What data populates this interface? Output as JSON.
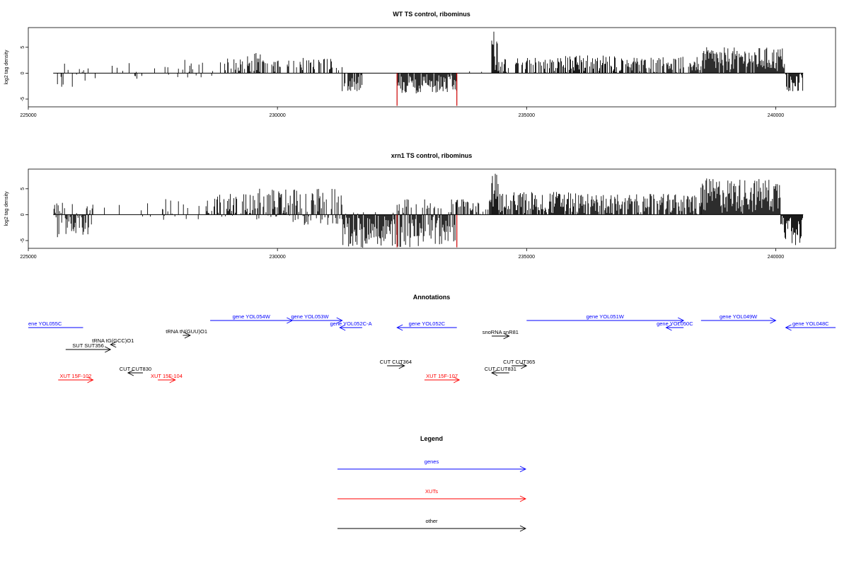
{
  "colors": {
    "genes": "#0000ff",
    "XUTs": "#ff0000",
    "other": "#000000",
    "highlight": "#cc0000"
  },
  "chart_data": [
    {
      "type": "bar",
      "title": "WT TS control, ribominus",
      "ylabel": "log2 tag density",
      "xlim": [
        225000,
        241200
      ],
      "ylim": [
        -6.5,
        8.8
      ],
      "xticks": [
        "225000",
        "230000",
        "235000",
        "240000"
      ],
      "yticks": [
        "-5",
        "0",
        "5"
      ],
      "data_range": [
        225500,
        240550
      ],
      "highlight_positions": [
        232400,
        233600
      ],
      "highlight_value": -6.3,
      "regions": [
        {
          "x0": 225500,
          "x1": 226200,
          "min": -3,
          "max": 2,
          "density": 0.3
        },
        {
          "x0": 226200,
          "x1": 227700,
          "min": -1.5,
          "max": 2,
          "density": 0.15
        },
        {
          "x0": 227700,
          "x1": 228700,
          "min": -1,
          "max": 3,
          "density": 0.3
        },
        {
          "x0": 228700,
          "x1": 229000,
          "min": 0,
          "max": 2.5,
          "density": 0.3
        },
        {
          "x0": 229000,
          "x1": 229400,
          "min": 0,
          "max": 3,
          "density": 0.5
        },
        {
          "x0": 229400,
          "x1": 229800,
          "min": 0,
          "max": 4,
          "density": 0.7
        },
        {
          "x0": 229800,
          "x1": 230500,
          "min": 0,
          "max": 2.5,
          "density": 0.3
        },
        {
          "x0": 230500,
          "x1": 231300,
          "min": 0,
          "max": 3,
          "density": 0.4
        },
        {
          "x0": 231300,
          "x1": 231700,
          "min": -3.5,
          "max": 0,
          "density": 0.8
        },
        {
          "x0": 231700,
          "x1": 232400,
          "min": 0,
          "max": 0,
          "density": 0
        },
        {
          "x0": 232400,
          "x1": 233600,
          "min": -4,
          "max": 0,
          "density": 0.9
        },
        {
          "x0": 233600,
          "x1": 234300,
          "min": 0,
          "max": 0.5,
          "density": 0.1
        },
        {
          "x0": 234300,
          "x1": 234450,
          "min": 0,
          "max": 8.5,
          "density": 1
        },
        {
          "x0": 234450,
          "x1": 235500,
          "min": 0,
          "max": 3,
          "density": 0.5
        },
        {
          "x0": 235500,
          "x1": 237000,
          "min": 0,
          "max": 3.5,
          "density": 0.7
        },
        {
          "x0": 237000,
          "x1": 238500,
          "min": 0,
          "max": 3.2,
          "density": 0.7
        },
        {
          "x0": 238500,
          "x1": 240200,
          "min": 0,
          "max": 5,
          "density": 0.9
        },
        {
          "x0": 240200,
          "x1": 240550,
          "min": -3.5,
          "max": 0,
          "density": 0.9
        }
      ]
    },
    {
      "type": "bar",
      "title": "xrn1 TS control, ribominus",
      "ylabel": "log2 tag density",
      "xlim": [
        225000,
        241200
      ],
      "ylim": [
        -6.5,
        8.8
      ],
      "xticks": [
        "225000",
        "230000",
        "235000",
        "240000"
      ],
      "yticks": [
        "-5",
        "0",
        "5"
      ],
      "data_range": [
        225500,
        240550
      ],
      "highlight_positions": [
        232400,
        233600
      ],
      "highlight_value": -6.3,
      "regions": [
        {
          "x0": 225500,
          "x1": 226300,
          "min": -4.5,
          "max": 2.5,
          "density": 0.9
        },
        {
          "x0": 226300,
          "x1": 227700,
          "min": -1,
          "max": 2.5,
          "density": 0.1
        },
        {
          "x0": 227700,
          "x1": 228700,
          "min": -1,
          "max": 3,
          "density": 0.3
        },
        {
          "x0": 228700,
          "x1": 229500,
          "min": -0.5,
          "max": 4,
          "density": 0.7
        },
        {
          "x0": 229500,
          "x1": 230200,
          "min": -1,
          "max": 5,
          "density": 0.8
        },
        {
          "x0": 230200,
          "x1": 231300,
          "min": -2,
          "max": 5,
          "density": 0.8
        },
        {
          "x0": 231300,
          "x1": 232400,
          "min": -6.5,
          "max": 0.5,
          "density": 1
        },
        {
          "x0": 232400,
          "x1": 233600,
          "min": -6.5,
          "max": 3,
          "density": 1
        },
        {
          "x0": 233600,
          "x1": 234300,
          "min": 0,
          "max": 3,
          "density": 0.6
        },
        {
          "x0": 234300,
          "x1": 234450,
          "min": 0,
          "max": 8.5,
          "density": 1
        },
        {
          "x0": 234450,
          "x1": 236000,
          "min": 0,
          "max": 4.5,
          "density": 0.8
        },
        {
          "x0": 236000,
          "x1": 238500,
          "min": 0,
          "max": 4,
          "density": 0.8
        },
        {
          "x0": 238500,
          "x1": 240100,
          "min": 0,
          "max": 7,
          "density": 1
        },
        {
          "x0": 240100,
          "x1": 240550,
          "min": -6,
          "max": 0,
          "density": 1
        }
      ]
    }
  ],
  "annotations": {
    "title": "Annotations",
    "features": [
      {
        "label": "ene YOL055C",
        "x0": 225000,
        "x1": 226100,
        "row": "a",
        "type": "genes",
        "dir": "none",
        "lx": 225000,
        "la": "start"
      },
      {
        "label": "gene YOL054W",
        "x0": 228650,
        "x1": 230300,
        "row": "b",
        "type": "genes",
        "dir": "right"
      },
      {
        "label": "gene YOL053W",
        "x0": 230000,
        "x1": 231300,
        "row": "b",
        "type": "genes",
        "dir": "right"
      },
      {
        "label": "gene YOL052C-A",
        "x0": 231250,
        "x1": 231700,
        "row": "a",
        "type": "genes",
        "dir": "left"
      },
      {
        "label": "gene YOL052C",
        "x0": 232400,
        "x1": 233600,
        "row": "a",
        "type": "genes",
        "dir": "left"
      },
      {
        "label": "gene YOL051W",
        "x0": 235000,
        "x1": 238150,
        "row": "b",
        "type": "genes",
        "dir": "right"
      },
      {
        "label": "gene YOL050C",
        "x0": 237800,
        "x1": 238150,
        "row": "a",
        "type": "genes",
        "dir": "left"
      },
      {
        "label": "gene YOL049W",
        "x0": 238500,
        "x1": 240000,
        "row": "b",
        "type": "genes",
        "dir": "right"
      },
      {
        "label": "gene YOL048C",
        "x0": 240200,
        "x1": 241200,
        "row": "a",
        "type": "genes",
        "dir": "left"
      },
      {
        "label": "tRNA tG(GCC)O1",
        "x0": 226650,
        "x1": 226750,
        "row": "c",
        "type": "other",
        "dir": "left"
      },
      {
        "label": "tRNA tN(GUU)O1",
        "x0": 228100,
        "x1": 228250,
        "row": "d",
        "type": "other",
        "dir": "right"
      },
      {
        "label": "snoRNA snR81",
        "x0": 234300,
        "x1": 234650,
        "row": "d2",
        "type": "other",
        "dir": "right"
      },
      {
        "label": "SUT SUT356",
        "x0": 225750,
        "x1": 226650,
        "row": "e",
        "type": "other",
        "dir": "right"
      },
      {
        "label": "CUT CUT830",
        "x0": 227000,
        "x1": 227300,
        "row": "f",
        "type": "other",
        "dir": "left"
      },
      {
        "label": "CUT CUT364",
        "x0": 232200,
        "x1": 232550,
        "row": "f2",
        "type": "other",
        "dir": "right"
      },
      {
        "label": "CUT CUT365",
        "x0": 234700,
        "x1": 235000,
        "row": "f2",
        "type": "other",
        "dir": "right"
      },
      {
        "label": "CUT CUT831",
        "x0": 234300,
        "x1": 234650,
        "row": "f",
        "type": "other",
        "dir": "left"
      },
      {
        "label": "XUT 15F-102",
        "x0": 225600,
        "x1": 226300,
        "row": "g",
        "type": "XUTs",
        "dir": "right"
      },
      {
        "label": "XUT 15F-104",
        "x0": 227600,
        "x1": 227950,
        "row": "g",
        "type": "XUTs",
        "dir": "right"
      },
      {
        "label": "XUT 15F-107",
        "x0": 232950,
        "x1": 233650,
        "row": "g",
        "type": "XUTs",
        "dir": "right"
      }
    ]
  },
  "legend": {
    "title": "Legend",
    "items": [
      {
        "label": "genes",
        "type": "genes"
      },
      {
        "label": "XUTs",
        "type": "XUTs"
      },
      {
        "label": "other",
        "type": "other"
      }
    ]
  }
}
